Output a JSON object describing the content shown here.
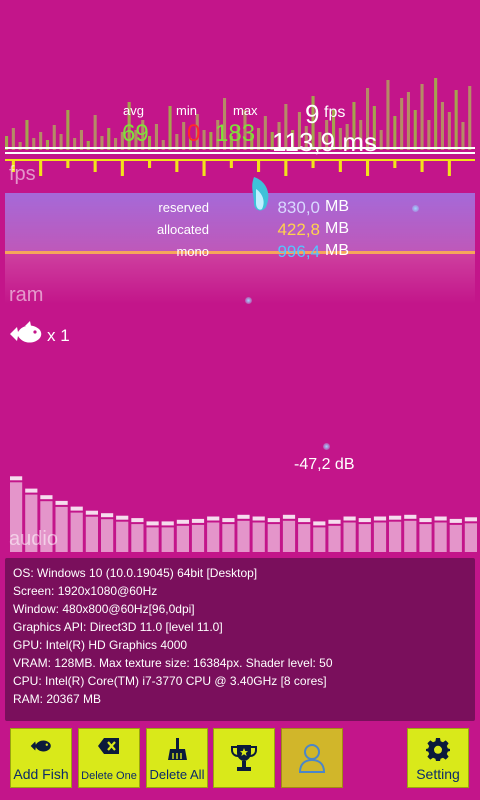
{
  "fps": {
    "avg_label": "avg",
    "min_label": "min",
    "max_label": "max",
    "avg_value": "69",
    "min_value": "0",
    "max_value": "183",
    "current_value": "9",
    "current_unit": "fps",
    "frame_time": "113,9 ms",
    "section_label": "fps",
    "colors": {
      "avg": "#7fe03a",
      "min": "#ff2a2a",
      "max": "#7fe03a"
    }
  },
  "ram": {
    "section_label": "ram",
    "rows": [
      {
        "label": "reserved",
        "value": "830,0",
        "unit": "MB",
        "color": "#d9d9ff"
      },
      {
        "label": "allocated",
        "value": "422,8",
        "unit": "MB",
        "color": "#ffd24d"
      },
      {
        "label": "mono",
        "value": "996,4",
        "unit": "MB",
        "color": "#53c5ff"
      }
    ]
  },
  "fish": {
    "count_text": "x 1",
    "icon": "fish-icon"
  },
  "audio": {
    "section_label": "audio",
    "db_value": "-47,2 dB"
  },
  "info": {
    "lines": [
      "OS: Windows 10  (10.0.19045) 64bit [Desktop]",
      "Screen: 1920x1080@60Hz",
      "Window: 480x800@60Hz[96,0dpi]",
      "Graphics API: Direct3D 11.0 [level 11.0]",
      "GPU: Intel(R) HD Graphics 4000",
      "VRAM: 128MB. Max texture size: 16384px. Shader level: 50",
      "CPU: Intel(R) Core(TM) i7-3770 CPU @ 3.40GHz [8 cores]",
      "RAM: 20367 MB"
    ]
  },
  "toolbar": {
    "add_fish": "Add Fish",
    "delete_one": "Delete One",
    "delete_all": "Delete All",
    "trophy_icon": "trophy-icon",
    "user_icon": "user-icon",
    "setting": "Setting"
  },
  "chart_data": {
    "type": "bar",
    "fps_bar_heights": [
      14,
      22,
      8,
      30,
      12,
      18,
      10,
      25,
      16,
      40,
      12,
      20,
      9,
      35,
      14,
      22,
      12,
      18,
      48,
      20,
      30,
      14,
      26,
      10,
      44,
      16,
      28,
      12,
      36,
      20,
      18,
      30,
      52,
      14,
      24,
      40,
      16,
      22,
      34,
      18,
      28,
      46,
      20,
      38,
      24,
      54,
      18,
      30,
      40,
      22,
      26,
      48,
      30,
      62,
      44,
      20,
      70,
      34,
      52,
      58,
      40,
      66,
      30,
      72,
      48,
      38,
      60,
      28,
      64
    ],
    "audio_levels": [
      0.85,
      0.7,
      0.62,
      0.55,
      0.48,
      0.43,
      0.4,
      0.37,
      0.34,
      0.3,
      0.3,
      0.32,
      0.33,
      0.36,
      0.34,
      0.38,
      0.36,
      0.34,
      0.38,
      0.34,
      0.3,
      0.32,
      0.36,
      0.34,
      0.36,
      0.37,
      0.38,
      0.34,
      0.36,
      0.33,
      0.35
    ]
  }
}
